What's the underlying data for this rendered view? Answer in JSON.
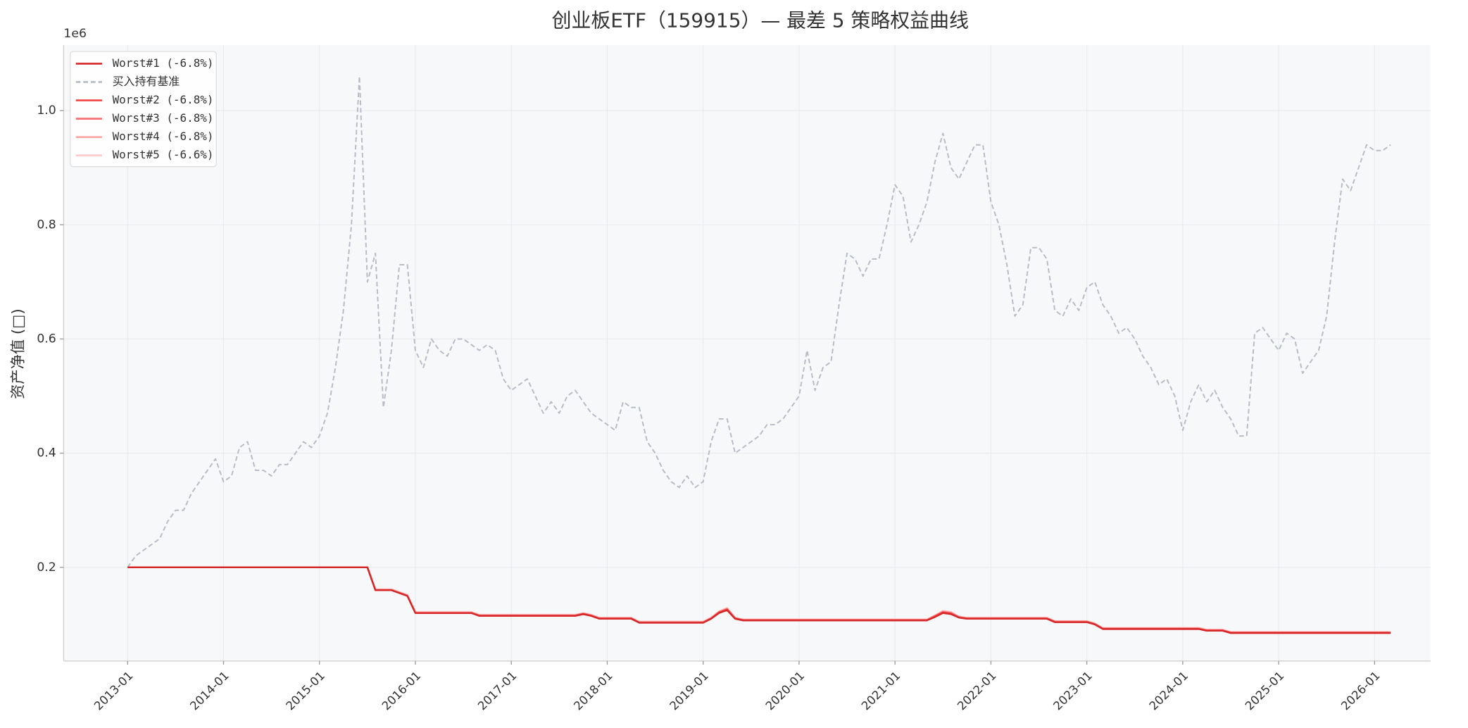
{
  "chart_data": {
    "type": "line",
    "title": "创业板ETF（159915）— 最差 5 策略权益曲线",
    "y_label": "资产净值 (□)",
    "y_offset_label": "1e6",
    "x": [
      "2013-01",
      "2013-02",
      "2013-03",
      "2013-04",
      "2013-05",
      "2013-06",
      "2013-07",
      "2013-08",
      "2013-09",
      "2013-10",
      "2013-11",
      "2013-12",
      "2014-01",
      "2014-02",
      "2014-03",
      "2014-04",
      "2014-05",
      "2014-06",
      "2014-07",
      "2014-08",
      "2014-09",
      "2014-10",
      "2014-11",
      "2014-12",
      "2015-01",
      "2015-02",
      "2015-03",
      "2015-04",
      "2015-05",
      "2015-06",
      "2015-07",
      "2015-08",
      "2015-09",
      "2015-10",
      "2015-11",
      "2015-12",
      "2016-01",
      "2016-02",
      "2016-03",
      "2016-04",
      "2016-05",
      "2016-06",
      "2016-07",
      "2016-08",
      "2016-09",
      "2016-10",
      "2016-11",
      "2016-12",
      "2017-01",
      "2017-02",
      "2017-03",
      "2017-04",
      "2017-05",
      "2017-06",
      "2017-07",
      "2017-08",
      "2017-09",
      "2017-10",
      "2017-11",
      "2017-12",
      "2018-01",
      "2018-02",
      "2018-03",
      "2018-04",
      "2018-05",
      "2018-06",
      "2018-07",
      "2018-08",
      "2018-09",
      "2018-10",
      "2018-11",
      "2018-12",
      "2019-01",
      "2019-02",
      "2019-03",
      "2019-04",
      "2019-05",
      "2019-06",
      "2019-07",
      "2019-08",
      "2019-09",
      "2019-10",
      "2019-11",
      "2019-12",
      "2020-01",
      "2020-02",
      "2020-03",
      "2020-04",
      "2020-05",
      "2020-06",
      "2020-07",
      "2020-08",
      "2020-09",
      "2020-10",
      "2020-11",
      "2020-12",
      "2021-01",
      "2021-02",
      "2021-03",
      "2021-04",
      "2021-05",
      "2021-06",
      "2021-07",
      "2021-08",
      "2021-09",
      "2021-10",
      "2021-11",
      "2021-12",
      "2022-01",
      "2022-02",
      "2022-03",
      "2022-04",
      "2022-05",
      "2022-06",
      "2022-07",
      "2022-08",
      "2022-09",
      "2022-10",
      "2022-11",
      "2022-12",
      "2023-01",
      "2023-02",
      "2023-03",
      "2023-04",
      "2023-05",
      "2023-06",
      "2023-07",
      "2023-08",
      "2023-09",
      "2023-10",
      "2023-11",
      "2023-12",
      "2024-01",
      "2024-02",
      "2024-03",
      "2024-04",
      "2024-05",
      "2024-06",
      "2024-07",
      "2024-08",
      "2024-09",
      "2024-10",
      "2024-11",
      "2024-12",
      "2025-01",
      "2025-02",
      "2025-03",
      "2025-04",
      "2025-05",
      "2025-06",
      "2025-07",
      "2025-08",
      "2025-09",
      "2025-10",
      "2025-11",
      "2025-12",
      "2026-01",
      "2026-02",
      "2026-03"
    ],
    "series": [
      {
        "name": "Worst#1 (-6.8%)",
        "color": "#d62728",
        "dashed": false,
        "values": [
          0.2,
          0.2,
          0.2,
          0.2,
          0.2,
          0.2,
          0.2,
          0.2,
          0.2,
          0.2,
          0.2,
          0.2,
          0.2,
          0.2,
          0.2,
          0.2,
          0.2,
          0.2,
          0.2,
          0.2,
          0.2,
          0.2,
          0.2,
          0.2,
          0.2,
          0.2,
          0.2,
          0.2,
          0.2,
          0.2,
          0.2,
          0.16,
          0.16,
          0.16,
          0.155,
          0.15,
          0.12,
          0.12,
          0.12,
          0.12,
          0.12,
          0.12,
          0.12,
          0.12,
          0.115,
          0.115,
          0.115,
          0.115,
          0.115,
          0.115,
          0.115,
          0.115,
          0.115,
          0.115,
          0.115,
          0.115,
          0.115,
          0.118,
          0.115,
          0.11,
          0.11,
          0.11,
          0.11,
          0.11,
          0.103,
          0.103,
          0.103,
          0.103,
          0.103,
          0.103,
          0.103,
          0.103,
          0.103,
          0.11,
          0.12,
          0.125,
          0.11,
          0.107,
          0.107,
          0.107,
          0.107,
          0.107,
          0.107,
          0.107,
          0.107,
          0.107,
          0.107,
          0.107,
          0.107,
          0.107,
          0.107,
          0.107,
          0.107,
          0.107,
          0.107,
          0.107,
          0.107,
          0.107,
          0.107,
          0.107,
          0.107,
          0.113,
          0.12,
          0.118,
          0.112,
          0.11,
          0.11,
          0.11,
          0.11,
          0.11,
          0.11,
          0.11,
          0.11,
          0.11,
          0.11,
          0.11,
          0.104,
          0.104,
          0.104,
          0.104,
          0.104,
          0.1,
          0.092,
          0.092,
          0.092,
          0.092,
          0.092,
          0.092,
          0.092,
          0.092,
          0.092,
          0.092,
          0.092,
          0.092,
          0.092,
          0.089,
          0.089,
          0.089,
          0.085,
          0.085,
          0.085,
          0.085,
          0.085,
          0.085,
          0.085,
          0.085,
          0.085,
          0.085,
          0.085,
          0.085,
          0.085,
          0.085,
          0.085,
          0.085,
          0.085,
          0.085,
          0.085,
          0.085,
          0.085
        ]
      },
      {
        "name": "买入持有基准",
        "color": "#b8bcc6",
        "dashed": true,
        "values": [
          0.2,
          0.22,
          0.23,
          0.24,
          0.25,
          0.28,
          0.3,
          0.3,
          0.33,
          0.35,
          0.37,
          0.39,
          0.35,
          0.36,
          0.41,
          0.42,
          0.37,
          0.37,
          0.36,
          0.38,
          0.38,
          0.4,
          0.42,
          0.41,
          0.43,
          0.47,
          0.55,
          0.65,
          0.8,
          1.06,
          0.7,
          0.75,
          0.48,
          0.58,
          0.73,
          0.73,
          0.58,
          0.55,
          0.6,
          0.58,
          0.57,
          0.6,
          0.6,
          0.59,
          0.58,
          0.59,
          0.58,
          0.53,
          0.51,
          0.52,
          0.53,
          0.5,
          0.47,
          0.49,
          0.47,
          0.5,
          0.51,
          0.49,
          0.47,
          0.46,
          0.45,
          0.44,
          0.49,
          0.48,
          0.48,
          0.42,
          0.4,
          0.37,
          0.35,
          0.34,
          0.36,
          0.34,
          0.35,
          0.42,
          0.46,
          0.46,
          0.4,
          0.41,
          0.42,
          0.43,
          0.45,
          0.45,
          0.46,
          0.48,
          0.5,
          0.58,
          0.51,
          0.55,
          0.56,
          0.66,
          0.75,
          0.74,
          0.71,
          0.74,
          0.74,
          0.8,
          0.87,
          0.85,
          0.77,
          0.8,
          0.84,
          0.91,
          0.96,
          0.9,
          0.88,
          0.91,
          0.94,
          0.94,
          0.84,
          0.8,
          0.73,
          0.64,
          0.66,
          0.76,
          0.76,
          0.74,
          0.65,
          0.64,
          0.67,
          0.65,
          0.69,
          0.7,
          0.66,
          0.64,
          0.61,
          0.62,
          0.6,
          0.57,
          0.55,
          0.52,
          0.53,
          0.5,
          0.44,
          0.49,
          0.52,
          0.49,
          0.51,
          0.48,
          0.46,
          0.43,
          0.43,
          0.61,
          0.62,
          0.6,
          0.58,
          0.61,
          0.6,
          0.54,
          0.56,
          0.58,
          0.64,
          0.77,
          0.88,
          0.86,
          0.9,
          0.94,
          0.93,
          0.93,
          0.94
        ]
      },
      {
        "name": "Worst#2 (-6.8%)",
        "color": "#ef4444",
        "dashed": false,
        "values": [
          0.2,
          0.2,
          0.2,
          0.2,
          0.2,
          0.2,
          0.2,
          0.2,
          0.2,
          0.2,
          0.2,
          0.2,
          0.2,
          0.2,
          0.2,
          0.2,
          0.2,
          0.2,
          0.2,
          0.2,
          0.2,
          0.2,
          0.2,
          0.2,
          0.2,
          0.2,
          0.2,
          0.2,
          0.2,
          0.2,
          0.2,
          0.16,
          0.16,
          0.16,
          0.155,
          0.15,
          0.12,
          0.12,
          0.12,
          0.12,
          0.12,
          0.12,
          0.12,
          0.12,
          0.115,
          0.115,
          0.115,
          0.115,
          0.115,
          0.115,
          0.115,
          0.115,
          0.115,
          0.115,
          0.115,
          0.115,
          0.115,
          0.118,
          0.115,
          0.11,
          0.11,
          0.11,
          0.11,
          0.11,
          0.103,
          0.103,
          0.103,
          0.103,
          0.103,
          0.103,
          0.103,
          0.103,
          0.103,
          0.11,
          0.121,
          0.126,
          0.11,
          0.107,
          0.107,
          0.107,
          0.107,
          0.107,
          0.107,
          0.107,
          0.107,
          0.107,
          0.107,
          0.107,
          0.107,
          0.107,
          0.107,
          0.107,
          0.107,
          0.107,
          0.107,
          0.107,
          0.107,
          0.107,
          0.107,
          0.107,
          0.107,
          0.114,
          0.121,
          0.119,
          0.112,
          0.11,
          0.11,
          0.11,
          0.11,
          0.11,
          0.11,
          0.11,
          0.11,
          0.11,
          0.11,
          0.11,
          0.104,
          0.104,
          0.104,
          0.104,
          0.104,
          0.1,
          0.092,
          0.092,
          0.092,
          0.092,
          0.092,
          0.092,
          0.092,
          0.092,
          0.092,
          0.092,
          0.092,
          0.092,
          0.092,
          0.089,
          0.089,
          0.089,
          0.085,
          0.085,
          0.085,
          0.085,
          0.085,
          0.085,
          0.085,
          0.085,
          0.085,
          0.085,
          0.085,
          0.085,
          0.085,
          0.085,
          0.085,
          0.085,
          0.085,
          0.085,
          0.085,
          0.085,
          0.085
        ]
      },
      {
        "name": "Worst#3 (-6.8%)",
        "color": "#f87171",
        "dashed": false,
        "values": [
          0.2,
          0.2,
          0.2,
          0.2,
          0.2,
          0.2,
          0.2,
          0.2,
          0.2,
          0.2,
          0.2,
          0.2,
          0.2,
          0.2,
          0.2,
          0.2,
          0.2,
          0.2,
          0.2,
          0.2,
          0.2,
          0.2,
          0.2,
          0.2,
          0.2,
          0.2,
          0.2,
          0.2,
          0.2,
          0.2,
          0.2,
          0.16,
          0.16,
          0.16,
          0.155,
          0.15,
          0.12,
          0.12,
          0.12,
          0.12,
          0.12,
          0.12,
          0.12,
          0.12,
          0.116,
          0.116,
          0.116,
          0.116,
          0.116,
          0.116,
          0.116,
          0.116,
          0.116,
          0.116,
          0.116,
          0.116,
          0.116,
          0.119,
          0.116,
          0.111,
          0.111,
          0.111,
          0.111,
          0.111,
          0.104,
          0.104,
          0.104,
          0.104,
          0.104,
          0.104,
          0.104,
          0.104,
          0.104,
          0.111,
          0.122,
          0.127,
          0.111,
          0.108,
          0.108,
          0.108,
          0.108,
          0.108,
          0.108,
          0.108,
          0.108,
          0.108,
          0.108,
          0.108,
          0.108,
          0.108,
          0.108,
          0.108,
          0.108,
          0.108,
          0.108,
          0.108,
          0.108,
          0.108,
          0.108,
          0.108,
          0.108,
          0.115,
          0.122,
          0.12,
          0.113,
          0.111,
          0.111,
          0.111,
          0.111,
          0.111,
          0.111,
          0.111,
          0.111,
          0.111,
          0.111,
          0.111,
          0.105,
          0.105,
          0.105,
          0.105,
          0.105,
          0.101,
          0.093,
          0.093,
          0.093,
          0.093,
          0.093,
          0.093,
          0.093,
          0.093,
          0.093,
          0.093,
          0.093,
          0.093,
          0.093,
          0.09,
          0.09,
          0.09,
          0.086,
          0.086,
          0.086,
          0.086,
          0.086,
          0.086,
          0.086,
          0.086,
          0.086,
          0.086,
          0.086,
          0.086,
          0.086,
          0.086,
          0.086,
          0.086,
          0.086,
          0.086,
          0.086,
          0.086,
          0.086
        ]
      },
      {
        "name": "Worst#4 (-6.8%)",
        "color": "#fca5a5",
        "dashed": false,
        "values": [
          0.2,
          0.2,
          0.2,
          0.2,
          0.2,
          0.2,
          0.2,
          0.2,
          0.2,
          0.2,
          0.2,
          0.2,
          0.2,
          0.2,
          0.2,
          0.2,
          0.2,
          0.2,
          0.2,
          0.2,
          0.2,
          0.2,
          0.2,
          0.2,
          0.2,
          0.2,
          0.2,
          0.2,
          0.2,
          0.2,
          0.2,
          0.161,
          0.161,
          0.161,
          0.156,
          0.151,
          0.121,
          0.121,
          0.121,
          0.121,
          0.121,
          0.121,
          0.121,
          0.121,
          0.116,
          0.116,
          0.116,
          0.116,
          0.116,
          0.116,
          0.116,
          0.116,
          0.116,
          0.116,
          0.116,
          0.116,
          0.116,
          0.119,
          0.116,
          0.111,
          0.111,
          0.111,
          0.111,
          0.111,
          0.104,
          0.104,
          0.104,
          0.104,
          0.104,
          0.104,
          0.104,
          0.104,
          0.104,
          0.111,
          0.122,
          0.128,
          0.111,
          0.108,
          0.108,
          0.108,
          0.108,
          0.108,
          0.108,
          0.108,
          0.108,
          0.108,
          0.108,
          0.108,
          0.108,
          0.108,
          0.108,
          0.108,
          0.108,
          0.108,
          0.108,
          0.108,
          0.108,
          0.108,
          0.108,
          0.108,
          0.108,
          0.115,
          0.123,
          0.121,
          0.113,
          0.111,
          0.111,
          0.111,
          0.111,
          0.111,
          0.111,
          0.111,
          0.111,
          0.111,
          0.111,
          0.111,
          0.105,
          0.105,
          0.105,
          0.105,
          0.105,
          0.101,
          0.093,
          0.093,
          0.093,
          0.093,
          0.093,
          0.093,
          0.093,
          0.093,
          0.093,
          0.093,
          0.093,
          0.093,
          0.093,
          0.09,
          0.09,
          0.09,
          0.086,
          0.086,
          0.086,
          0.086,
          0.086,
          0.086,
          0.086,
          0.086,
          0.086,
          0.086,
          0.086,
          0.086,
          0.086,
          0.086,
          0.086,
          0.086,
          0.086,
          0.086,
          0.086,
          0.086,
          0.086
        ]
      },
      {
        "name": "Worst#5 (-6.6%)",
        "color": "#fecaca",
        "dashed": false,
        "values": [
          0.2,
          0.2,
          0.2,
          0.2,
          0.2,
          0.2,
          0.2,
          0.2,
          0.2,
          0.2,
          0.2,
          0.2,
          0.2,
          0.2,
          0.2,
          0.2,
          0.2,
          0.2,
          0.2,
          0.2,
          0.2,
          0.2,
          0.2,
          0.2,
          0.2,
          0.2,
          0.2,
          0.2,
          0.2,
          0.2,
          0.2,
          0.162,
          0.162,
          0.162,
          0.157,
          0.152,
          0.122,
          0.122,
          0.122,
          0.122,
          0.122,
          0.122,
          0.122,
          0.122,
          0.117,
          0.117,
          0.117,
          0.117,
          0.117,
          0.117,
          0.117,
          0.117,
          0.117,
          0.117,
          0.117,
          0.117,
          0.117,
          0.12,
          0.117,
          0.112,
          0.112,
          0.112,
          0.112,
          0.112,
          0.105,
          0.105,
          0.105,
          0.105,
          0.105,
          0.105,
          0.105,
          0.105,
          0.105,
          0.112,
          0.123,
          0.129,
          0.112,
          0.109,
          0.109,
          0.109,
          0.109,
          0.109,
          0.109,
          0.109,
          0.109,
          0.109,
          0.109,
          0.109,
          0.109,
          0.109,
          0.109,
          0.109,
          0.109,
          0.109,
          0.109,
          0.109,
          0.109,
          0.109,
          0.109,
          0.109,
          0.109,
          0.116,
          0.124,
          0.122,
          0.114,
          0.112,
          0.112,
          0.112,
          0.112,
          0.112,
          0.112,
          0.112,
          0.112,
          0.112,
          0.112,
          0.112,
          0.106,
          0.106,
          0.106,
          0.106,
          0.106,
          0.102,
          0.094,
          0.094,
          0.094,
          0.094,
          0.094,
          0.094,
          0.094,
          0.094,
          0.094,
          0.094,
          0.094,
          0.094,
          0.094,
          0.091,
          0.091,
          0.091,
          0.087,
          0.087,
          0.087,
          0.087,
          0.087,
          0.087,
          0.087,
          0.087,
          0.087,
          0.087,
          0.087,
          0.087,
          0.087,
          0.087,
          0.087,
          0.087,
          0.087,
          0.087,
          0.087,
          0.087,
          0.087
        ]
      }
    ],
    "xlim": [
      "2012-05",
      "2026-08"
    ],
    "xticks": [
      "2013-01",
      "2014-01",
      "2015-01",
      "2016-01",
      "2017-01",
      "2018-01",
      "2019-01",
      "2020-01",
      "2021-01",
      "2022-01",
      "2023-01",
      "2024-01",
      "2025-01",
      "2026-01"
    ],
    "ylim": [
      0.036,
      1.115
    ],
    "yticks": [
      0.2,
      0.4,
      0.6,
      0.8,
      {
        "value": 1,
        "label": "1.0"
      }
    ],
    "grid": true,
    "legend": "upper left"
  }
}
